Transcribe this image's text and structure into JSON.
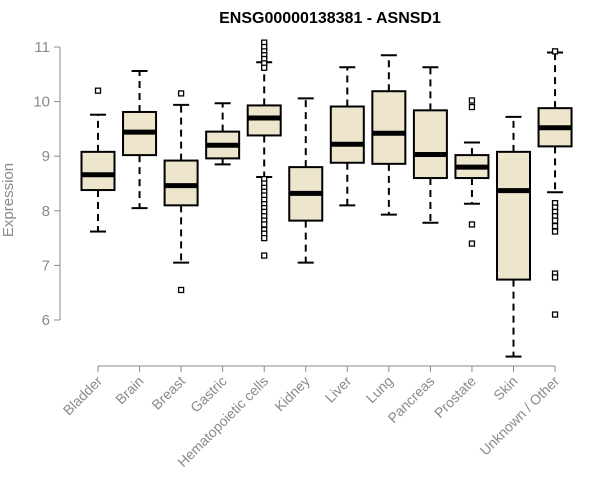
{
  "chart_data": {
    "type": "boxplot",
    "title": "ENSG00000138381 - ASNSD1",
    "xlabel": "",
    "ylabel": "Expression",
    "ylim": [
      5.5,
      11
    ],
    "yticks": [
      6,
      7,
      8,
      9,
      10,
      11
    ],
    "grid": false,
    "colors": {
      "box_fill": "#ede6cd",
      "box_stroke": "#000000",
      "median": "#000000",
      "axis": "#8a8a8a",
      "text": "#8a8a8a"
    },
    "categories": [
      "Bladder",
      "Brain",
      "Breast",
      "Gastric",
      "Hematopoietic cells",
      "Kidney",
      "Liver",
      "Lung",
      "Pancreas",
      "Prostate",
      "Skin",
      "Unknown / Other"
    ],
    "boxes": [
      {
        "category": "Bladder",
        "whisker_low": 7.62,
        "q1": 8.38,
        "median": 8.66,
        "q3": 9.08,
        "whisker_high": 9.76,
        "outliers": [
          10.2
        ]
      },
      {
        "category": "Brain",
        "whisker_low": 8.05,
        "q1": 9.02,
        "median": 9.44,
        "q3": 9.81,
        "whisker_high": 10.56,
        "outliers": []
      },
      {
        "category": "Breast",
        "whisker_low": 7.05,
        "q1": 8.1,
        "median": 8.46,
        "q3": 8.92,
        "whisker_high": 9.94,
        "outliers": [
          6.55,
          10.15
        ]
      },
      {
        "category": "Gastric",
        "whisker_low": 8.85,
        "q1": 8.96,
        "median": 9.2,
        "q3": 9.45,
        "whisker_high": 9.97,
        "outliers": []
      },
      {
        "category": "Hematopoietic cells",
        "whisker_low": 8.62,
        "q1": 9.38,
        "median": 9.7,
        "q3": 9.93,
        "whisker_high": 10.72,
        "outliers": [
          11.08,
          11.0,
          10.92,
          10.85,
          10.78,
          10.7,
          10.62,
          8.58,
          8.5,
          8.42,
          8.35,
          8.28,
          8.2,
          8.12,
          8.05,
          7.98,
          7.9,
          7.82,
          7.75,
          7.65,
          7.58,
          7.5,
          7.18
        ]
      },
      {
        "category": "Kidney",
        "whisker_low": 7.05,
        "q1": 7.82,
        "median": 8.32,
        "q3": 8.8,
        "whisker_high": 10.06,
        "outliers": []
      },
      {
        "category": "Liver",
        "whisker_low": 8.1,
        "q1": 8.88,
        "median": 9.22,
        "q3": 9.91,
        "whisker_high": 10.63,
        "outliers": []
      },
      {
        "category": "Lung",
        "whisker_low": 7.93,
        "q1": 8.86,
        "median": 9.42,
        "q3": 10.19,
        "whisker_high": 10.85,
        "outliers": []
      },
      {
        "category": "Pancreas",
        "whisker_low": 7.78,
        "q1": 8.6,
        "median": 9.03,
        "q3": 9.84,
        "whisker_high": 10.63,
        "outliers": []
      },
      {
        "category": "Prostate",
        "whisker_low": 8.13,
        "q1": 8.6,
        "median": 8.8,
        "q3": 9.02,
        "whisker_high": 9.25,
        "outliers": [
          10.02,
          9.9,
          7.75,
          7.4
        ]
      },
      {
        "category": "Skin",
        "whisker_low": 5.33,
        "q1": 6.74,
        "median": 8.37,
        "q3": 9.08,
        "whisker_high": 9.72,
        "outliers": []
      },
      {
        "category": "Unknown / Other",
        "whisker_low": 8.34,
        "q1": 9.18,
        "median": 9.52,
        "q3": 9.88,
        "whisker_high": 10.9,
        "outliers": [
          10.92,
          8.14,
          8.06,
          7.98,
          7.9,
          7.82,
          7.72,
          7.62,
          6.85,
          6.78,
          6.1
        ]
      }
    ]
  }
}
